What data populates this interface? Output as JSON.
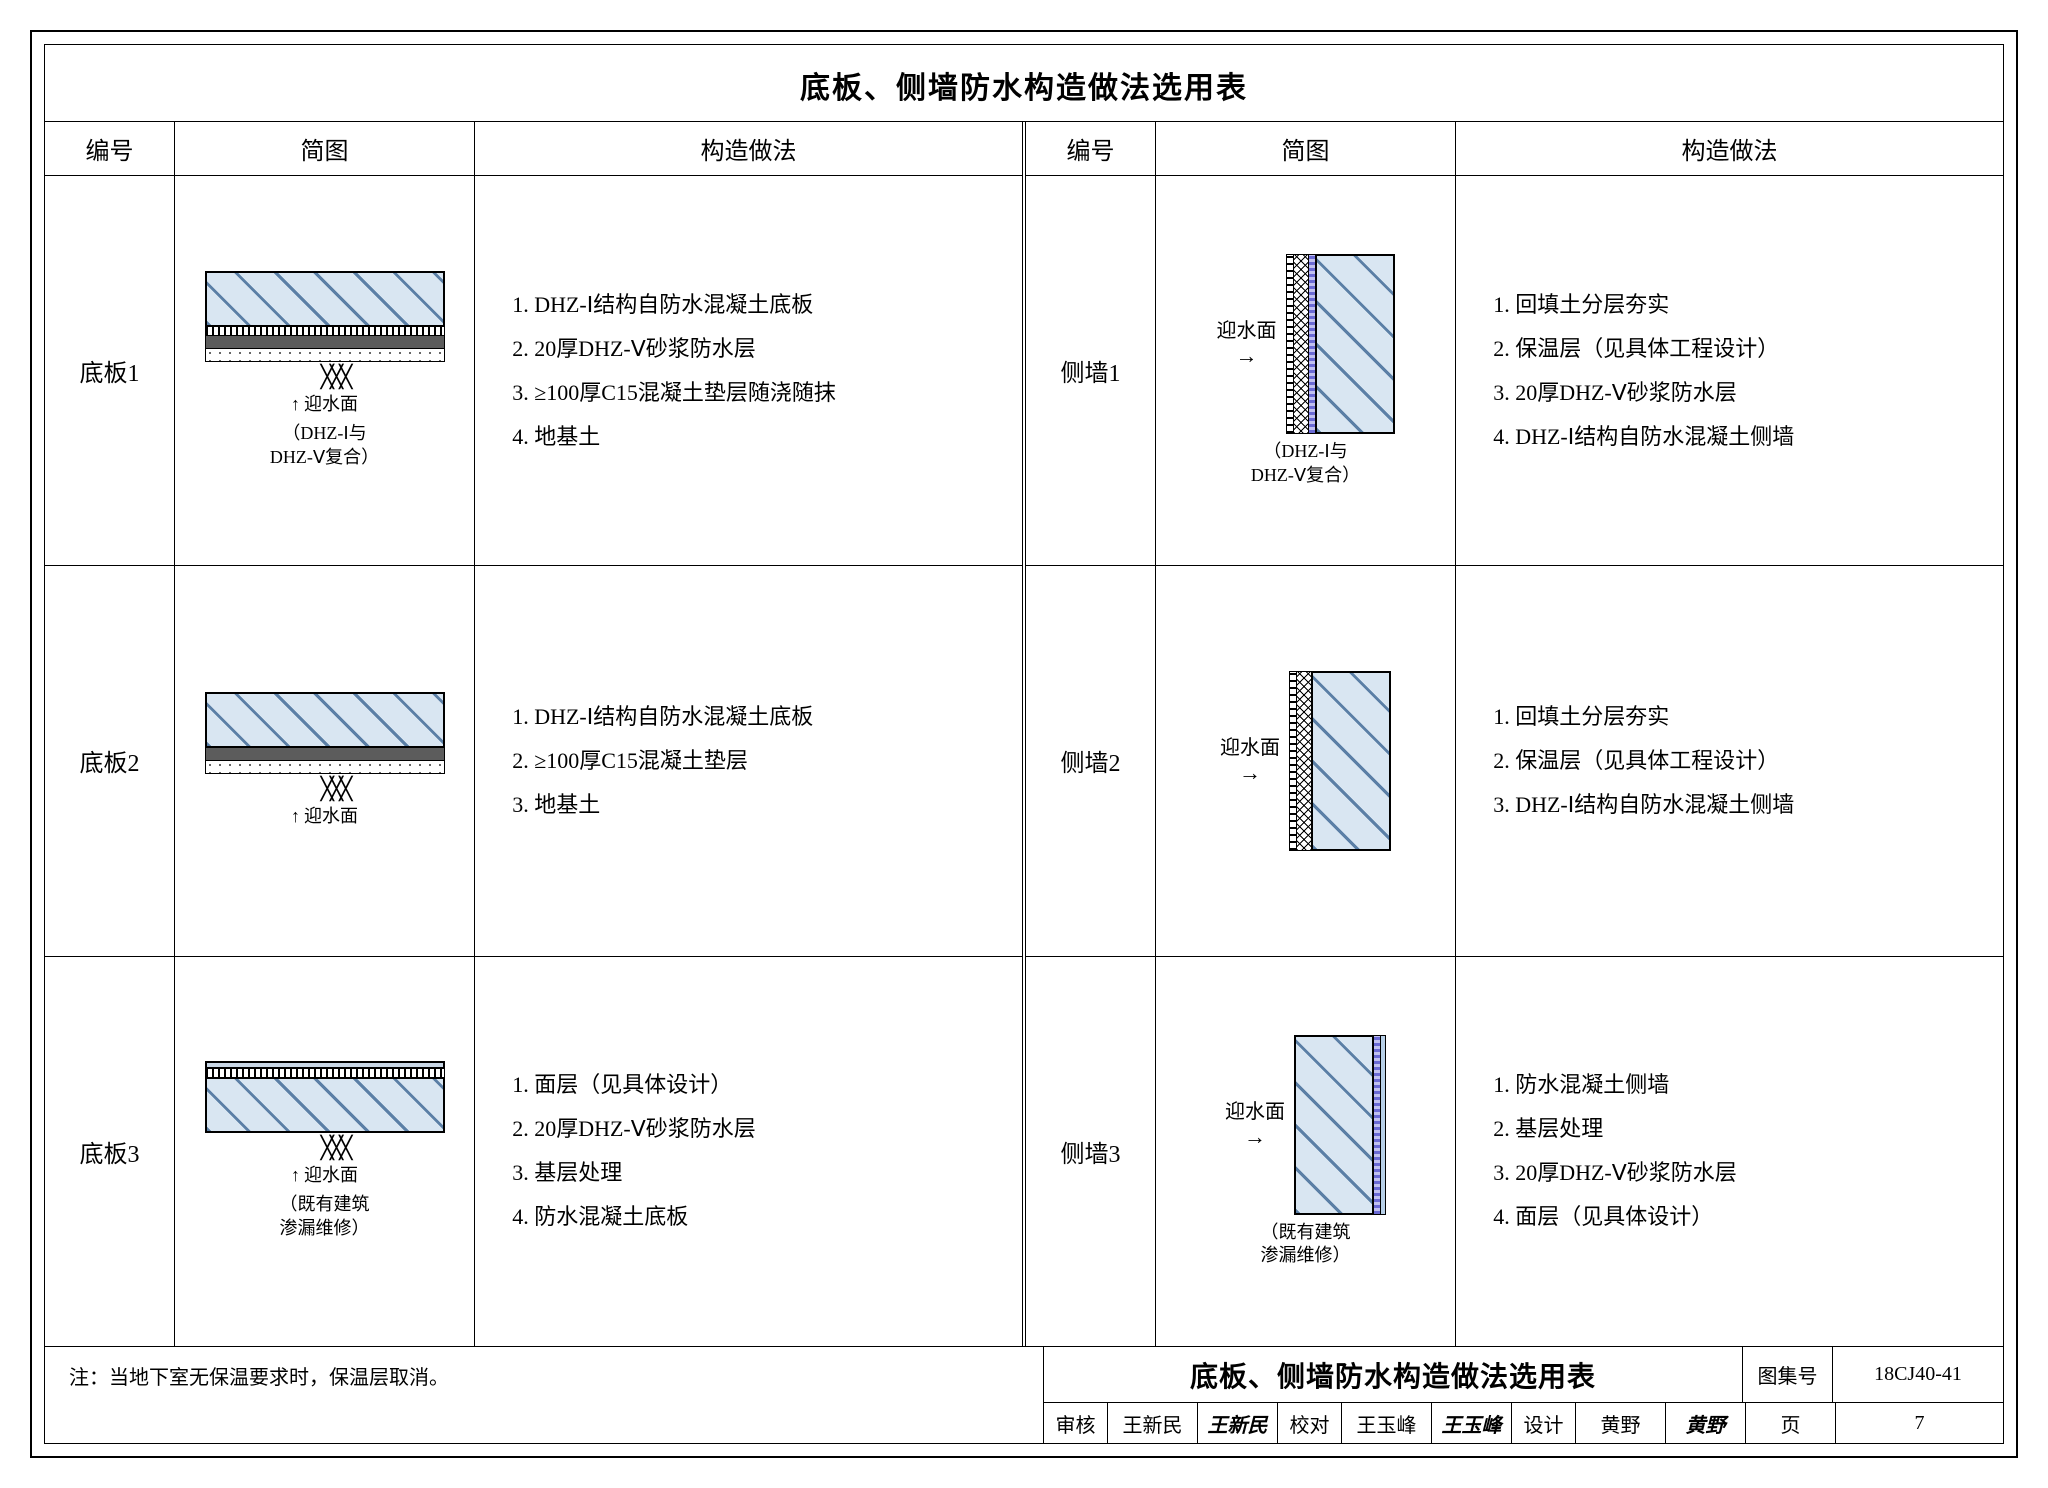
{
  "title": "底板、侧墙防水构造做法选用表",
  "headers": {
    "id": "编号",
    "diagram": "简图",
    "method": "构造做法"
  },
  "left": [
    {
      "id": "底板1",
      "caption_top": "迎水面",
      "caption": "（DHZ-Ⅰ与\nDHZ-Ⅴ复合）",
      "steps": [
        "DHZ-Ⅰ结构自防水混凝土底板",
        "20厚DHZ-Ⅴ砂浆防水层",
        "≥100厚C15混凝土垫层随浇随抹",
        "地基土"
      ],
      "layers": [
        "concrete",
        "mortar",
        "screed",
        "gravel"
      ]
    },
    {
      "id": "底板2",
      "caption_top": "迎水面",
      "caption": "",
      "steps": [
        "DHZ-Ⅰ结构自防水混凝土底板",
        "≥100厚C15混凝土垫层",
        "地基土"
      ],
      "layers": [
        "concrete",
        "screed",
        "gravel"
      ]
    },
    {
      "id": "底板3",
      "caption_top": "迎水面",
      "caption": "（既有建筑\n渗漏维修）",
      "steps": [
        "面层（见具体设计）",
        "20厚DHZ-Ⅴ砂浆防水层",
        "基层处理",
        "防水混凝土底板"
      ],
      "layers": [
        "cap",
        "mortar",
        "concrete"
      ]
    }
  ],
  "right": [
    {
      "id": "侧墙1",
      "water_label": "迎水面",
      "caption": "（DHZ-Ⅰ与\nDHZ-Ⅴ复合）",
      "steps": [
        "回填土分层夯实",
        "保温层（见具体工程设计）",
        "20厚DHZ-Ⅴ砂浆防水层",
        "DHZ-Ⅰ结构自防水混凝土侧墙"
      ],
      "vlayers": [
        "backfill",
        "insul",
        "wp",
        "conc"
      ]
    },
    {
      "id": "侧墙2",
      "water_label": "迎水面",
      "caption": "",
      "steps": [
        "回填土分层夯实",
        "保温层（见具体工程设计）",
        "DHZ-Ⅰ结构自防水混凝土侧墙"
      ],
      "vlayers": [
        "backfill",
        "insul",
        "conc"
      ]
    },
    {
      "id": "侧墙3",
      "water_label": "迎水面",
      "caption": "（既有建筑\n渗漏维修）",
      "steps": [
        "防水混凝土侧墙",
        "基层处理",
        "20厚DHZ-Ⅴ砂浆防水层",
        "面层（见具体设计）"
      ],
      "vlayers": [
        "conc",
        "wp",
        "thinwp"
      ]
    }
  ],
  "note": "注：当地下室无保温要求时，保温层取消。",
  "titleblock": {
    "title": "底板、侧墙防水构造做法选用表",
    "atlas_label": "图集号",
    "atlas": "18CJ40-41",
    "page_label": "页",
    "page": "7",
    "fields": [
      {
        "k": "审核",
        "v": "王新民",
        "sig": "王新民"
      },
      {
        "k": "校对",
        "v": "王玉峰",
        "sig": "王玉峰"
      },
      {
        "k": "设计",
        "v": "黄野",
        "sig": "黄野"
      }
    ]
  },
  "style": {
    "concrete_hatch": "#5b7fa6",
    "concrete_bg": "#d9e6f2",
    "border_color": "#000000",
    "font": "SimSun",
    "title_fontsize": 30,
    "body_fontsize": 22
  }
}
